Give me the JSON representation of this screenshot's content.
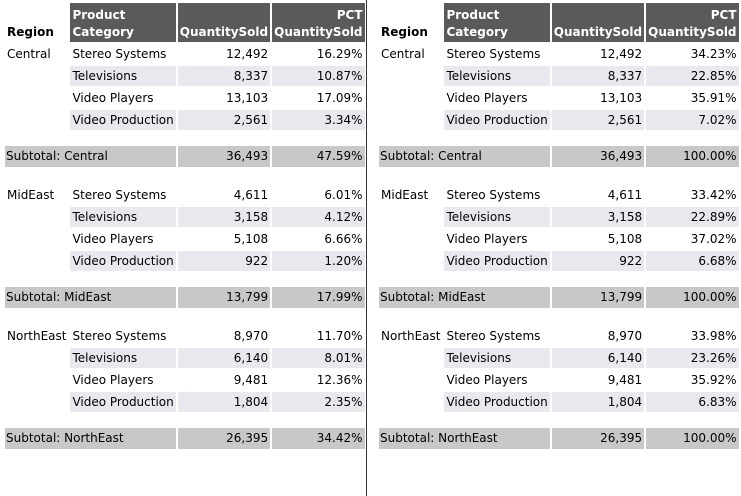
{
  "headers": {
    "region": "Region",
    "category_line1": "Product",
    "category_line2": "Category",
    "qty": "QuantitySold",
    "pct_line1": "PCT",
    "pct_line2": "QuantitySold"
  },
  "left": {
    "groups": [
      {
        "region": "Central",
        "rows": [
          {
            "cat": "Stereo Systems",
            "qty": "12,492",
            "pct": "16.29%"
          },
          {
            "cat": "Televisions",
            "qty": "8,337",
            "pct": "10.87%"
          },
          {
            "cat": "Video Players",
            "qty": "13,103",
            "pct": "17.09%"
          },
          {
            "cat": "Video Production",
            "qty": "2,561",
            "pct": "3.34%"
          }
        ],
        "subtotal": {
          "label": "Subtotal: Central",
          "qty": "36,493",
          "pct": "47.59%"
        }
      },
      {
        "region": "MidEast",
        "rows": [
          {
            "cat": "Stereo Systems",
            "qty": "4,611",
            "pct": "6.01%"
          },
          {
            "cat": "Televisions",
            "qty": "3,158",
            "pct": "4.12%"
          },
          {
            "cat": "Video Players",
            "qty": "5,108",
            "pct": "6.66%"
          },
          {
            "cat": "Video Production",
            "qty": "922",
            "pct": "1.20%"
          }
        ],
        "subtotal": {
          "label": "Subtotal: MidEast",
          "qty": "13,799",
          "pct": "17.99%"
        }
      },
      {
        "region": "NorthEast",
        "rows": [
          {
            "cat": "Stereo Systems",
            "qty": "8,970",
            "pct": "11.70%"
          },
          {
            "cat": "Televisions",
            "qty": "6,140",
            "pct": "8.01%"
          },
          {
            "cat": "Video Players",
            "qty": "9,481",
            "pct": "12.36%"
          },
          {
            "cat": "Video Production",
            "qty": "1,804",
            "pct": "2.35%"
          }
        ],
        "subtotal": {
          "label": "Subtotal: NorthEast",
          "qty": "26,395",
          "pct": "34.42%"
        }
      }
    ]
  },
  "right": {
    "groups": [
      {
        "region": "Central",
        "rows": [
          {
            "cat": "Stereo Systems",
            "qty": "12,492",
            "pct": "34.23%"
          },
          {
            "cat": "Televisions",
            "qty": "8,337",
            "pct": "22.85%"
          },
          {
            "cat": "Video Players",
            "qty": "13,103",
            "pct": "35.91%"
          },
          {
            "cat": "Video Production",
            "qty": "2,561",
            "pct": "7.02%"
          }
        ],
        "subtotal": {
          "label": "Subtotal: Central",
          "qty": "36,493",
          "pct": "100.00%"
        }
      },
      {
        "region": "MidEast",
        "rows": [
          {
            "cat": "Stereo Systems",
            "qty": "4,611",
            "pct": "33.42%"
          },
          {
            "cat": "Televisions",
            "qty": "3,158",
            "pct": "22.89%"
          },
          {
            "cat": "Video Players",
            "qty": "5,108",
            "pct": "37.02%"
          },
          {
            "cat": "Video Production",
            "qty": "922",
            "pct": "6.68%"
          }
        ],
        "subtotal": {
          "label": "Subtotal: MidEast",
          "qty": "13,799",
          "pct": "100.00%"
        }
      },
      {
        "region": "NorthEast",
        "rows": [
          {
            "cat": "Stereo Systems",
            "qty": "8,970",
            "pct": "33.98%"
          },
          {
            "cat": "Televisions",
            "qty": "6,140",
            "pct": "23.26%"
          },
          {
            "cat": "Video Players",
            "qty": "9,481",
            "pct": "35.92%"
          },
          {
            "cat": "Video Production",
            "qty": "1,804",
            "pct": "6.83%"
          }
        ],
        "subtotal": {
          "label": "Subtotal: NorthEast",
          "qty": "26,395",
          "pct": "100.00%"
        }
      }
    ]
  }
}
